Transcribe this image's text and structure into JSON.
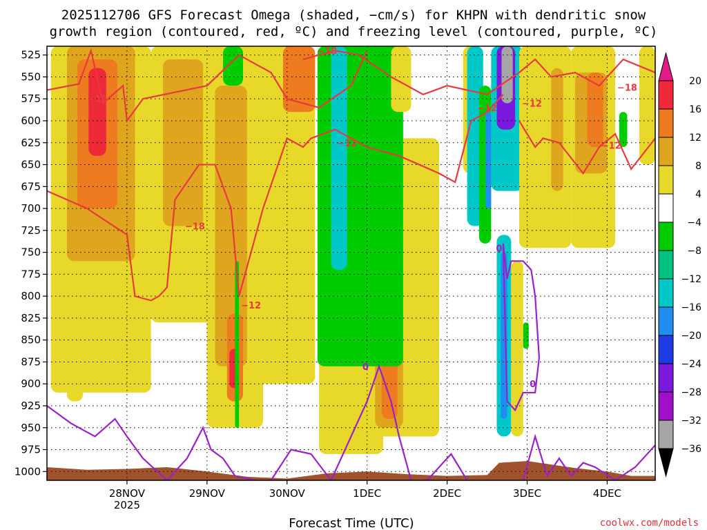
{
  "chart_data": {
    "type": "heatmap",
    "title_line1": "2025112706 GFS Forecast Omega (shaded, −cm/s) for KHPN with dendritic snow",
    "title_line2": "growth region (contoured, red, ºC) and freezing level (contoured, purple, ºC)",
    "xlabel": "Forecast Time (UTC)",
    "credit": "coolwx.com/models",
    "colors": {
      "ground": "#a0522d",
      "red_contour": "#e8393f",
      "purple_contour": "#9b20c8",
      "frame": "#000000"
    },
    "x_range": [
      0,
      7.6
    ],
    "x_ticks": [
      {
        "x": 1.0,
        "label": "28NOV",
        "sublabel": "2025"
      },
      {
        "x": 2.0,
        "label": "29NOV",
        "sublabel": ""
      },
      {
        "x": 3.0,
        "label": "30NOV",
        "sublabel": ""
      },
      {
        "x": 4.0,
        "label": "1DEC",
        "sublabel": ""
      },
      {
        "x": 5.0,
        "label": "2DEC",
        "sublabel": ""
      },
      {
        "x": 6.0,
        "label": "3DEC",
        "sublabel": ""
      },
      {
        "x": 7.0,
        "label": "4DEC",
        "sublabel": ""
      }
    ],
    "p_range": [
      1010,
      515
    ],
    "y_ticks": [
      525,
      550,
      575,
      600,
      625,
      650,
      675,
      700,
      725,
      750,
      775,
      800,
      825,
      850,
      875,
      900,
      925,
      950,
      975,
      1000
    ],
    "colorbar": {
      "ticks": [
        "20",
        "16",
        "12",
        "8",
        "4",
        "−4",
        "−8",
        "−12",
        "−16",
        "−20",
        "−24",
        "−28",
        "−32",
        "−36"
      ],
      "bands": [
        {
          "lo": 16,
          "hi": 20,
          "color": "#ee2a3a"
        },
        {
          "lo": 12,
          "hi": 16,
          "color": "#ee7b1f"
        },
        {
          "lo": 8,
          "hi": 12,
          "color": "#e0a51f"
        },
        {
          "lo": 4,
          "hi": 8,
          "color": "#e8d82a"
        },
        {
          "lo": -4,
          "hi": 4,
          "color": "#ffffff"
        },
        {
          "lo": -8,
          "hi": -4,
          "color": "#00cc00"
        },
        {
          "lo": -12,
          "hi": -8,
          "color": "#00c280"
        },
        {
          "lo": -16,
          "hi": -12,
          "color": "#00c8c8"
        },
        {
          "lo": -20,
          "hi": -16,
          "color": "#1e8ff0"
        },
        {
          "lo": -24,
          "hi": -20,
          "color": "#1e3ce6"
        },
        {
          "lo": -28,
          "hi": -24,
          "color": "#7a18dc"
        },
        {
          "lo": -32,
          "hi": -28,
          "color": "#a010c8"
        },
        {
          "lo": -36,
          "hi": -32,
          "color": "#a6a6a6"
        }
      ],
      "top_arrow_color": "#e21a8a",
      "bottom_arrow_color": "#000000"
    },
    "shading": [
      {
        "v": 5,
        "x0": 0.05,
        "x1": 1.3,
        "p0": 515,
        "p1": 910
      },
      {
        "v": 9,
        "x0": 0.25,
        "x1": 1.1,
        "p0": 515,
        "p1": 760
      },
      {
        "v": 13,
        "x0": 0.38,
        "x1": 0.88,
        "p0": 530,
        "p1": 700
      },
      {
        "v": 17,
        "x0": 0.52,
        "x1": 0.74,
        "p0": 540,
        "p1": 640
      },
      {
        "v": 5,
        "x0": 1.3,
        "x1": 2.15,
        "p0": 515,
        "p1": 830
      },
      {
        "v": 9,
        "x0": 1.45,
        "x1": 1.95,
        "p0": 530,
        "p1": 720
      },
      {
        "v": 5,
        "x0": 2.0,
        "x1": 2.7,
        "p0": 515,
        "p1": 950
      },
      {
        "v": 9,
        "x0": 2.1,
        "x1": 2.5,
        "p0": 560,
        "p1": 880
      },
      {
        "v": 13,
        "x0": 2.25,
        "x1": 2.45,
        "p0": 820,
        "p1": 920
      },
      {
        "v": 17,
        "x0": 2.28,
        "x1": 2.4,
        "p0": 860,
        "p1": 905
      },
      {
        "v": 5,
        "x0": 2.6,
        "x1": 3.35,
        "p0": 515,
        "p1": 900
      },
      {
        "v": 13,
        "x0": 2.95,
        "x1": 3.35,
        "p0": 515,
        "p1": 590
      },
      {
        "v": 5,
        "x0": 3.4,
        "x1": 4.2,
        "p0": 640,
        "p1": 980
      },
      {
        "v": 5,
        "x0": 3.9,
        "x1": 4.9,
        "p0": 620,
        "p1": 960
      },
      {
        "v": 9,
        "x0": 4.1,
        "x1": 4.45,
        "p0": 730,
        "p1": 950
      },
      {
        "v": 13,
        "x0": 4.18,
        "x1": 4.38,
        "p0": 820,
        "p1": 940
      },
      {
        "v": -7,
        "x0": 2.35,
        "x1": 2.4,
        "p0": 760,
        "p1": 950
      },
      {
        "v": -7,
        "x0": 2.2,
        "x1": 2.45,
        "p0": 515,
        "p1": 560
      },
      {
        "v": -7,
        "x0": 3.38,
        "x1": 4.45,
        "p0": 515,
        "p1": 880
      },
      {
        "v": -13,
        "x0": 3.55,
        "x1": 3.75,
        "p0": 515,
        "p1": 770
      },
      {
        "v": 5,
        "x0": 4.3,
        "x1": 4.55,
        "p0": 515,
        "p1": 590
      },
      {
        "v": 5,
        "x0": 5.2,
        "x1": 5.4,
        "p0": 515,
        "p1": 660
      },
      {
        "v": -13,
        "x0": 5.25,
        "x1": 5.45,
        "p0": 515,
        "p1": 720
      },
      {
        "v": -7,
        "x0": 5.4,
        "x1": 5.55,
        "p0": 560,
        "p1": 740
      },
      {
        "v": -18,
        "x0": 5.48,
        "x1": 5.55,
        "p0": 590,
        "p1": 700
      },
      {
        "v": -13,
        "x0": 5.55,
        "x1": 5.95,
        "p0": 515,
        "p1": 680
      },
      {
        "v": -26,
        "x0": 5.62,
        "x1": 5.85,
        "p0": 515,
        "p1": 610
      },
      {
        "v": -36,
        "x0": 5.68,
        "x1": 5.82,
        "p0": 515,
        "p1": 580
      },
      {
        "v": -13,
        "x0": 5.62,
        "x1": 5.8,
        "p0": 730,
        "p1": 960
      },
      {
        "v": -18,
        "x0": 5.67,
        "x1": 5.75,
        "p0": 750,
        "p1": 940
      },
      {
        "v": 5,
        "x0": 5.8,
        "x1": 5.95,
        "p0": 760,
        "p1": 960
      },
      {
        "v": 5,
        "x0": 5.9,
        "x1": 6.55,
        "p0": 515,
        "p1": 745
      },
      {
        "v": 9,
        "x0": 6.3,
        "x1": 6.45,
        "p0": 540,
        "p1": 680
      },
      {
        "v": -7,
        "x0": 5.95,
        "x1": 6.02,
        "p0": 830,
        "p1": 860
      },
      {
        "v": 5,
        "x0": 6.55,
        "x1": 7.1,
        "p0": 515,
        "p1": 745
      },
      {
        "v": 9,
        "x0": 6.6,
        "x1": 7.0,
        "p0": 545,
        "p1": 660
      },
      {
        "v": 13,
        "x0": 6.75,
        "x1": 6.95,
        "p0": 545,
        "p1": 630
      },
      {
        "v": -7,
        "x0": 7.15,
        "x1": 7.25,
        "p0": 590,
        "p1": 630
      },
      {
        "v": 5,
        "x0": 7.4,
        "x1": 7.6,
        "p0": 515,
        "p1": 650
      },
      {
        "v": 5,
        "x0": 0.25,
        "x1": 0.45,
        "p0": 870,
        "p1": 920
      }
    ],
    "red_contours": [
      {
        "x": [
          0,
          0.4,
          0.55,
          0.7,
          0.95,
          1.0,
          1.2,
          2.0,
          2.4,
          2.8,
          3.0,
          3.4,
          3.8,
          4.0
        ],
        "p": [
          565,
          558,
          520,
          580,
          560,
          600,
          575,
          560,
          525,
          545,
          575,
          585,
          560,
          520
        ]
      },
      {
        "x": [
          0,
          0.5,
          1.0,
          1.1,
          1.3,
          1.4,
          1.5,
          1.6,
          1.9,
          2.1,
          2.3,
          2.4
        ],
        "p": [
          680,
          700,
          730,
          800,
          805,
          800,
          790,
          690,
          650,
          650,
          700,
          800
        ]
      },
      {
        "x": [
          2.4,
          2.7,
          3.0,
          3.2,
          3.3,
          3.6,
          4.0,
          4.4,
          4.9,
          5.1,
          5.3,
          5.5,
          5.7
        ],
        "p": [
          800,
          700,
          620,
          630,
          620,
          610,
          630,
          640,
          660,
          670,
          600,
          590,
          570
        ]
      },
      {
        "x": [
          3.2,
          3.6,
          3.9,
          4.3,
          4.7,
          5.0,
          5.5,
          5.9,
          6.1,
          6.3,
          6.6,
          6.9,
          7.2,
          7.6
        ],
        "p": [
          530,
          520,
          525,
          550,
          570,
          560,
          570,
          545,
          530,
          550,
          545,
          560,
          530,
          545
        ]
      },
      {
        "x": [
          5.9,
          6.1,
          6.2,
          6.4,
          6.7,
          6.9,
          7.1,
          7.3,
          7.6
        ],
        "p": [
          600,
          630,
          620,
          625,
          660,
          630,
          615,
          655,
          620
        ]
      }
    ],
    "red_labels": [
      {
        "x": 3.5,
        "p": 520,
        "text": "−18"
      },
      {
        "x": 0.63,
        "p": 575,
        "text": "−12"
      },
      {
        "x": 3.75,
        "p": 625,
        "text": "−12"
      },
      {
        "x": 1.85,
        "p": 720,
        "text": "−18"
      },
      {
        "x": 2.55,
        "p": 810,
        "text": "−12"
      },
      {
        "x": 5.5,
        "p": 585,
        "text": "−12"
      },
      {
        "x": 6.06,
        "p": 580,
        "text": "−12"
      },
      {
        "x": 7.25,
        "p": 562,
        "text": "−18"
      },
      {
        "x": 7.05,
        "p": 628,
        "text": "−12"
      }
    ],
    "purple_contours": [
      {
        "x": [
          0,
          0.3,
          0.6,
          0.85,
          1.0,
          1.2,
          1.5
        ],
        "p": [
          925,
          945,
          960,
          940,
          960,
          985,
          1010
        ]
      },
      {
        "x": [
          1.5,
          1.75,
          1.95,
          2.05,
          2.2,
          2.35,
          2.6
        ],
        "p": [
          1010,
          985,
          950,
          975,
          985,
          1005,
          1010
        ]
      },
      {
        "x": [
          2.8,
          3.05,
          3.3,
          3.55,
          3.8,
          4.0,
          4.15,
          4.3,
          4.4,
          4.55
        ],
        "p": [
          1010,
          975,
          980,
          1010,
          960,
          920,
          880,
          920,
          960,
          1010
        ]
      },
      {
        "x": [
          4.75,
          5.05,
          5.25
        ],
        "p": [
          1010,
          980,
          1010
        ]
      },
      {
        "x": [
          5.95,
          6.1,
          6.25,
          6.4,
          6.55,
          6.7,
          6.85,
          7.1,
          7.35,
          7.6
        ],
        "p": [
          1010,
          960,
          1005,
          985,
          1005,
          990,
          995,
          1010,
          995,
          970
        ]
      },
      {
        "x": [
          5.7,
          5.75,
          5.8,
          5.95,
          6.05,
          6.1,
          6.15,
          6.1,
          5.95,
          5.85,
          5.75,
          5.7
        ],
        "p": [
          740,
          780,
          760,
          760,
          770,
          800,
          870,
          910,
          910,
          930,
          920,
          740
        ]
      }
    ],
    "purple_labels": [
      {
        "x": 3.98,
        "p": 880,
        "text": "0"
      },
      {
        "x": 5.65,
        "p": 745,
        "text": "0"
      },
      {
        "x": 6.07,
        "p": 900,
        "text": "0"
      }
    ],
    "ground": {
      "x": [
        0,
        0.5,
        1.0,
        1.5,
        2.0,
        2.5,
        3.0,
        3.5,
        4.0,
        4.5,
        5.0,
        5.5,
        5.65,
        6.0,
        6.3,
        6.6,
        7.0,
        7.3,
        7.6
      ],
      "p": [
        995,
        998,
        997,
        995,
        1000,
        1006,
        1008,
        1002,
        1000,
        1003,
        1005,
        1004,
        990,
        988,
        992,
        996,
        1000,
        1005,
        1005
      ]
    }
  }
}
